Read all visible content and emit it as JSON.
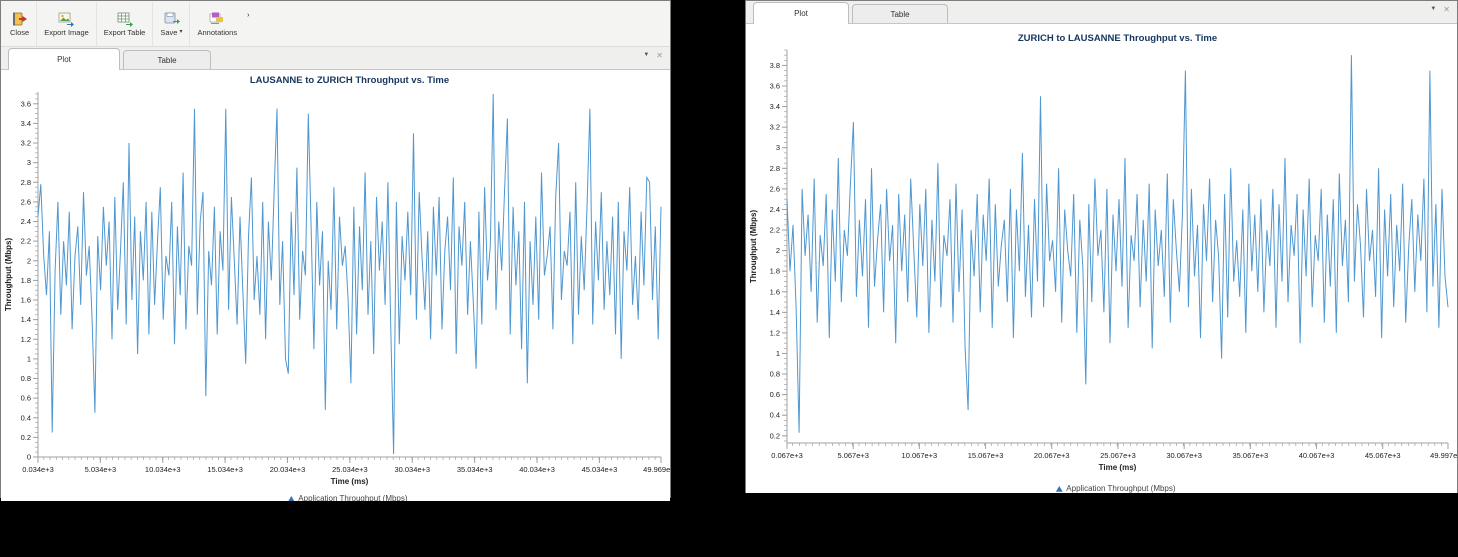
{
  "background_color": "#000000",
  "accent_line_color": "#4f97d0",
  "legend_marker_color": "#2e75b6",
  "title_color": "#17365d",
  "left_window": {
    "toolbar": {
      "buttons": [
        {
          "label": "Close",
          "icon": "close-icon"
        },
        {
          "label": "Export Image",
          "icon": "export-image-icon"
        },
        {
          "label": "Export Table",
          "icon": "export-table-icon"
        },
        {
          "label": "Save",
          "icon": "save-icon",
          "dropdown_caret": "▾"
        },
        {
          "label": "Annotations",
          "icon": "annotations-icon"
        }
      ],
      "overflow_mark": "›"
    },
    "tabs": [
      {
        "label": "Plot",
        "active": true
      },
      {
        "label": "Table",
        "active": false
      }
    ],
    "tab_controls": {
      "collapse": "▼",
      "close": "✕"
    }
  },
  "right_window": {
    "tabs": [
      {
        "label": "Plot",
        "active": true
      },
      {
        "label": "Table",
        "active": false
      }
    ],
    "tab_controls": {
      "collapse": "▼",
      "close": "✕"
    }
  },
  "chart_data": [
    {
      "type": "line",
      "title": "LAUSANNE to ZURICH Throughput vs. Time",
      "xlabel": "Time (ms)",
      "ylabel": "Throughput (Mbps)",
      "legend": "Application Throughput (Mbps)",
      "legend_position": "bottom-center",
      "grid": false,
      "xlim": [
        34,
        49969
      ],
      "ylim": [
        0,
        3.72
      ],
      "x_ticks": [
        "0.034e+3",
        "5.034e+3",
        "10.034e+3",
        "15.034e+3",
        "20.034e+3",
        "25.034e+3",
        "30.034e+3",
        "35.034e+3",
        "40.034e+3",
        "45.034e+3",
        "49.969e+3"
      ],
      "y_ticks": [
        "0",
        "0.2",
        "0.4",
        "0.6",
        "0.8",
        "1",
        "1.2",
        "1.4",
        "1.6",
        "1.8",
        "2",
        "2.2",
        "2.4",
        "2.6",
        "2.8",
        "3",
        "3.2",
        "3.4",
        "3.6"
      ],
      "values": [
        2.45,
        2.78,
        2.05,
        1.65,
        2.3,
        0.25,
        1.9,
        2.6,
        1.45,
        2.2,
        1.75,
        2.5,
        1.3,
        2.05,
        2.35,
        1.55,
        2.7,
        1.85,
        2.15,
        1.4,
        0.45,
        2.25,
        1.7,
        2.55,
        1.95,
        2.4,
        1.2,
        2.65,
        1.5,
        2.1,
        2.8,
        1.35,
        3.2,
        1.6,
        2.45,
        1.05,
        2.3,
        1.8,
        2.6,
        1.25,
        2.5,
        1.55,
        2.2,
        2.75,
        1.4,
        2.05,
        1.85,
        2.6,
        1.15,
        2.35,
        1.65,
        2.9,
        1.3,
        2.15,
        1.95,
        3.55,
        1.45,
        2.4,
        2.7,
        0.62,
        2.1,
        1.75,
        2.55,
        1.25,
        2.3,
        1.9,
        3.55,
        1.5,
        2.65,
        2.0,
        1.35,
        2.45,
        1.7,
        0.95,
        2.25,
        2.85,
        1.6,
        2.05,
        1.45,
        2.6,
        1.2,
        2.4,
        1.8,
        2.7,
        3.55,
        1.55,
        2.2,
        1.0,
        0.85,
        2.5,
        1.65,
        2.95,
        1.4,
        2.1,
        1.85,
        3.5,
        2.35,
        1.1,
        2.6,
        1.75,
        2.3,
        0.48,
        2.0,
        1.5,
        2.75,
        1.3,
        2.45,
        1.95,
        2.15,
        1.6,
        0.75,
        2.55,
        1.25,
        2.35,
        1.7,
        2.9,
        1.45,
        2.2,
        1.05,
        2.65,
        1.9,
        2.4,
        1.55,
        2.8,
        1.35,
        0.03,
        2.6,
        1.15,
        2.25,
        1.8,
        2.5,
        1.65,
        3.3,
        1.4,
        2.7,
        2.05,
        1.5,
        2.3,
        1.2,
        2.55,
        1.85,
        2.65,
        1.3,
        2.1,
        2.45,
        1.7,
        2.85,
        1.05,
        2.35,
        1.95,
        2.6,
        1.45,
        2.2,
        1.6,
        0.9,
        2.5,
        1.35,
        2.75,
        1.8,
        2.15,
        3.7,
        1.5,
        2.4,
        1.9,
        2.7,
        3.45,
        1.25,
        2.55,
        1.75,
        2.3,
        1.1,
        2.6,
        0.75,
        2.2,
        1.55,
        2.45,
        1.4,
        2.9,
        1.85,
        2.05,
        2.35,
        1.3,
        2.65,
        3.2,
        1.6,
        2.1,
        1.95,
        2.5,
        1.15,
        2.8,
        1.45,
        2.25,
        1.7,
        2.55,
        3.55,
        1.35,
        2.4,
        1.8,
        2.7,
        1.5,
        2.2,
        1.65,
        2.45,
        1.25,
        2.6,
        1.0,
        2.3,
        1.9,
        2.75,
        1.55,
        2.05,
        1.4,
        2.5,
        1.75,
        2.85,
        2.8,
        1.6,
        2.35,
        1.2,
        2.55
      ]
    },
    {
      "type": "line",
      "title": "ZURICH to LAUSANNE Throughput vs. Time",
      "xlabel": "Time (ms)",
      "ylabel": "Throughput (Mbps)",
      "legend": "Application Throughput (Mbps)",
      "legend_position": "bottom-center",
      "grid": false,
      "xlim": [
        67,
        49997
      ],
      "ylim": [
        0.13,
        3.95
      ],
      "x_ticks": [
        "0.067e+3",
        "5.067e+3",
        "10.067e+3",
        "15.067e+3",
        "20.067e+3",
        "25.067e+3",
        "30.067e+3",
        "35.067e+3",
        "40.067e+3",
        "45.067e+3",
        "49.997e+3"
      ],
      "y_ticks": [
        "0.2",
        "0.4",
        "0.6",
        "0.8",
        "1",
        "1.2",
        "1.4",
        "1.6",
        "1.8",
        "2",
        "2.2",
        "2.4",
        "2.6",
        "2.8",
        "3",
        "3.2",
        "3.4",
        "3.6",
        "3.8"
      ],
      "values": [
        2.5,
        1.8,
        2.25,
        1.45,
        0.23,
        2.6,
        1.95,
        2.35,
        1.6,
        2.7,
        1.3,
        2.15,
        1.85,
        2.55,
        1.15,
        2.4,
        1.7,
        2.9,
        1.5,
        2.2,
        1.95,
        2.65,
        3.25,
        1.55,
        2.3,
        1.75,
        2.5,
        1.25,
        2.8,
        1.65,
        2.1,
        2.45,
        1.4,
        2.6,
        1.9,
        2.25,
        1.1,
        2.55,
        1.8,
        2.35,
        1.5,
        2.7,
        2.0,
        1.35,
        2.45,
        1.85,
        2.6,
        1.2,
        2.3,
        1.7,
        2.85,
        1.45,
        2.15,
        1.95,
        2.5,
        1.3,
        2.65,
        1.6,
        2.4,
        1.05,
        0.45,
        2.2,
        1.75,
        2.55,
        1.4,
        2.35,
        1.9,
        2.7,
        1.25,
        2.45,
        1.65,
        2.05,
        2.3,
        1.5,
        2.6,
        1.15,
        2.4,
        1.8,
        2.95,
        1.55,
        2.25,
        1.35,
        2.5,
        1.7,
        3.5,
        1.45,
        2.65,
        1.9,
        2.1,
        1.6,
        2.8,
        1.3,
        2.4,
        2.0,
        1.75,
        2.55,
        1.2,
        2.3,
        1.85,
        0.7,
        2.45,
        1.5,
        2.7,
        1.95,
        2.2,
        1.4,
        2.6,
        1.1,
        2.35,
        1.8,
        2.5,
        1.65,
        2.9,
        1.25,
        2.15,
        1.9,
        2.55,
        1.45,
        2.3,
        1.7,
        2.65,
        1.05,
        2.4,
        1.85,
        2.2,
        1.55,
        2.75,
        1.3,
        2.5,
        2.0,
        1.6,
        2.35,
        3.75,
        1.45,
        2.6,
        1.75,
        2.25,
        1.15,
        2.45,
        1.9,
        2.7,
        1.5,
        2.3,
        1.95,
        0.95,
        2.55,
        1.35,
        2.8,
        1.7,
        2.1,
        1.55,
        2.4,
        1.2,
        2.65,
        1.8,
        2.35,
        1.6,
        2.5,
        1.4,
        2.2,
        1.85,
        2.6,
        1.25,
        2.45,
        1.7,
        2.9,
        1.5,
        2.25,
        1.95,
        2.55,
        1.1,
        2.4,
        1.75,
        2.7,
        1.45,
        2.15,
        1.9,
        2.6,
        1.3,
        2.35,
        1.65,
        2.5,
        1.2,
        2.75,
        1.85,
        2.3,
        1.5,
        3.9,
        1.7,
        2.45,
        2.05,
        1.35,
        2.6,
        1.9,
        2.2,
        1.55,
        2.8,
        1.15,
        2.4,
        1.75,
        2.55,
        1.45,
        2.25,
        1.8,
        2.65,
        1.3,
        2.05,
        2.5,
        1.6,
        2.35,
        1.9,
        2.7,
        1.4,
        3.75,
        1.65,
        2.45,
        1.25,
        2.6,
        1.75,
        1.45
      ]
    }
  ]
}
